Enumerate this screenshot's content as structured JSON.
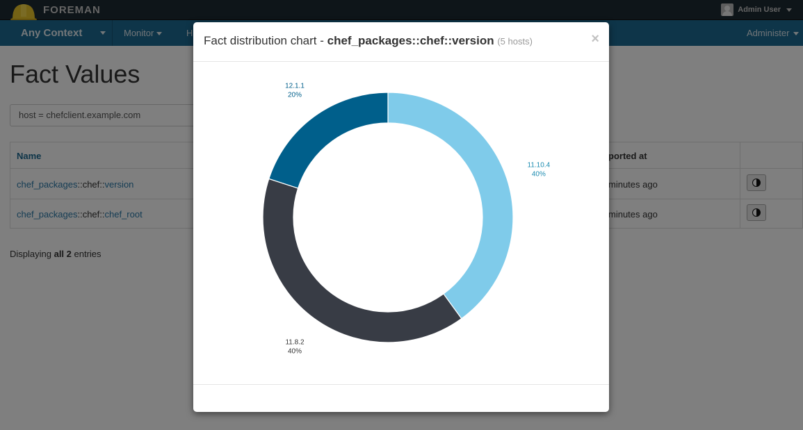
{
  "app": {
    "brand": "FOREMAN"
  },
  "header": {
    "user_name": "Admin User"
  },
  "nav": {
    "context": "Any Context",
    "items": [
      {
        "label": "Monitor",
        "has_caret": true
      },
      {
        "label": "H",
        "has_caret": false
      },
      {
        "label": "Administer",
        "has_caret": true
      }
    ]
  },
  "page": {
    "title": "Fact Values",
    "search_value": "host = chefclient.example.com",
    "table": {
      "headers": {
        "name": "Name",
        "reported": "ported at"
      },
      "rows": [
        {
          "part1": "chef_packages",
          "sep1": "::",
          "part2": "chef",
          "sep2": "::",
          "part3": "version",
          "time": "minutes ago"
        },
        {
          "part1": "chef_packages",
          "sep1": "::",
          "part2": "chef",
          "sep2": "::",
          "part3": "chef_root",
          "time": "minutes ago"
        }
      ]
    },
    "footer": {
      "prefix": "Displaying ",
      "bold": "all 2",
      "suffix": " entries"
    }
  },
  "modal": {
    "title_prefix": "Fact distribution chart - ",
    "title_fact": "chef_packages::chef::version",
    "title_hosts": "(5 hosts)",
    "close_glyph": "×"
  },
  "chart_data": {
    "type": "pie",
    "donut": true,
    "title": "",
    "slices": [
      {
        "label": "11.10.4",
        "percent": "40%",
        "value": 40,
        "color": "#7fcbea",
        "label_color": "#1b8bb0"
      },
      {
        "label": "11.8.2",
        "percent": "40%",
        "value": 40,
        "color": "#383c45",
        "label_color": "#333333"
      },
      {
        "label": "12.1.1",
        "percent": "20%",
        "value": 20,
        "color": "#005f8b",
        "label_color": "#005f8b"
      }
    ]
  }
}
